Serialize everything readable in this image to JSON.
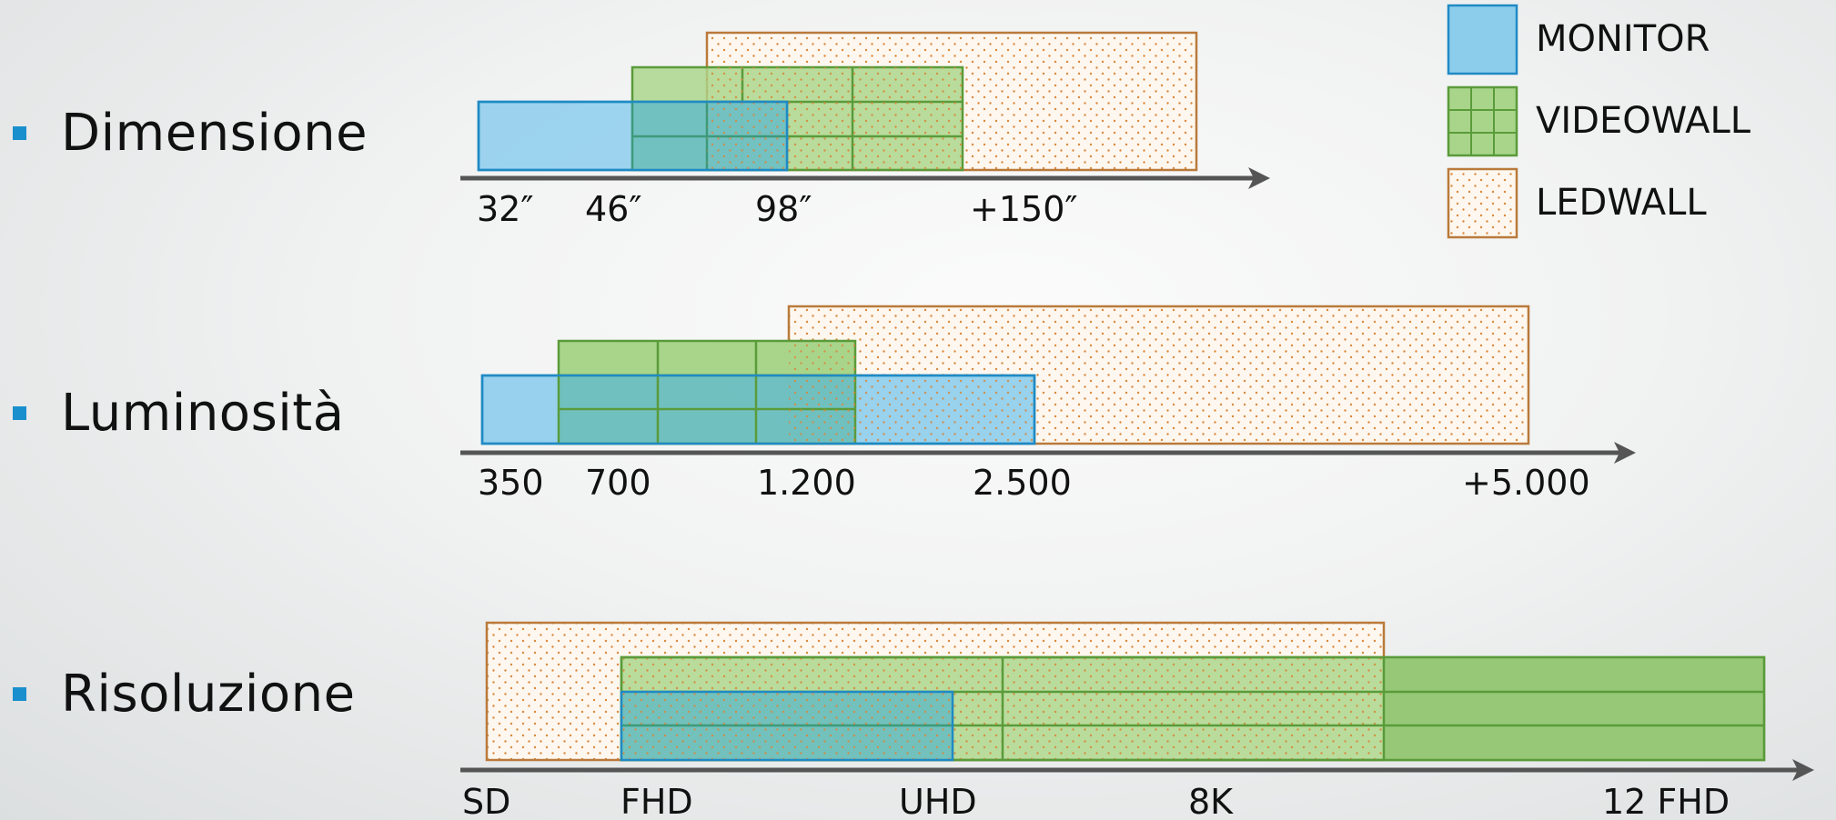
{
  "legend": [
    {
      "key": "monitor",
      "label": "MONITOR"
    },
    {
      "key": "videowall",
      "label": "VIDEOWALL"
    },
    {
      "key": "ledwall",
      "label": "LEDWALL"
    }
  ],
  "colors": {
    "monitor_fill": "#8dcdec",
    "monitor_stroke": "#1f8ac4",
    "videowall_fill": "#a9d58a",
    "videowall_stroke": "#5a9b3a",
    "ledwall_fill": "#fdf7ef",
    "ledwall_dot": "#d9883c",
    "ledwall_stroke": "#b97a3b",
    "bullet": "#1a8fce",
    "axis": "#555555"
  },
  "rows": [
    {
      "title": "Dimensione",
      "ticks": [
        "32″",
        "46″",
        "98″",
        "+150″"
      ],
      "ranges": {
        "monitor": [
          "32″",
          "98″"
        ],
        "videowall": [
          "46″",
          "+150″"
        ],
        "ledwall": [
          "46″",
          "+150″"
        ]
      }
    },
    {
      "title": "Luminosità",
      "ticks": [
        "350",
        "700",
        "1.200",
        "2.500",
        "+5.000"
      ],
      "ranges": {
        "monitor": [
          "350",
          "2.500"
        ],
        "videowall": [
          "700",
          "1.200"
        ],
        "ledwall": [
          "1.200",
          "+5.000"
        ]
      }
    },
    {
      "title": "Risoluzione",
      "ticks": [
        "SD",
        "FHD",
        "UHD",
        "8K",
        "12 FHD"
      ],
      "ranges": {
        "monitor": [
          "FHD",
          "UHD"
        ],
        "videowall": [
          "FHD",
          "12 FHD"
        ],
        "ledwall": [
          "SD",
          "8K"
        ]
      }
    }
  ]
}
